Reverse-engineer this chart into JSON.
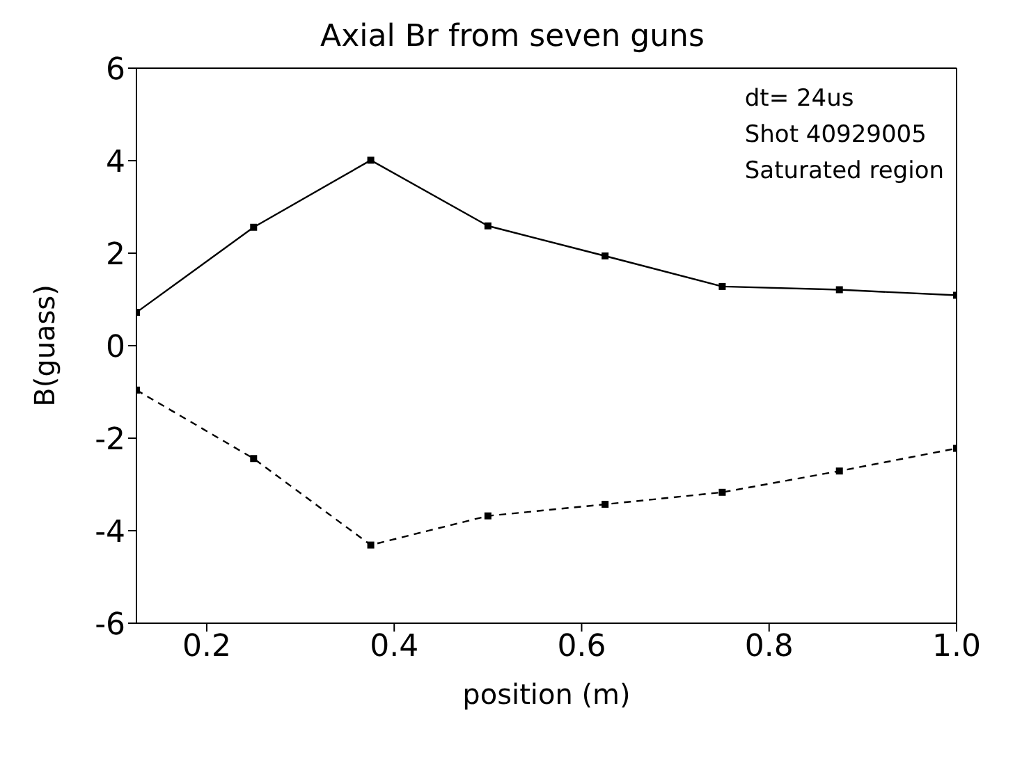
{
  "chart_data": {
    "type": "line",
    "title": "Axial Br from seven guns",
    "xlabel": "position (m)",
    "ylabel": "B(guass)",
    "annotations": [
      "dt= 24us",
      "Shot 40929005",
      "Saturated region"
    ],
    "x": [
      0.125,
      0.25,
      0.375,
      0.5,
      0.625,
      0.75,
      0.875,
      1.0
    ],
    "series": [
      {
        "color": "#000000",
        "line_style": "solid",
        "values": [
          0.72,
          2.56,
          4.01,
          2.59,
          1.94,
          1.28,
          1.21,
          1.09
        ]
      },
      {
        "color": "#000000",
        "line_style": "dashed",
        "values": [
          -0.96,
          -2.44,
          -4.31,
          -3.68,
          -3.43,
          -3.17,
          -2.71,
          -2.22
        ]
      }
    ],
    "xlim": [
      0.125,
      1.0
    ],
    "xticks": [
      0.2,
      0.4,
      0.6,
      0.8,
      {
        "value": 1,
        "label": "1.0"
      }
    ],
    "ylim": [
      -6,
      6
    ],
    "yticks": [
      -6,
      -4,
      -2,
      0,
      2,
      4,
      6
    ],
    "grid": false,
    "legend": false,
    "marker": "square"
  }
}
